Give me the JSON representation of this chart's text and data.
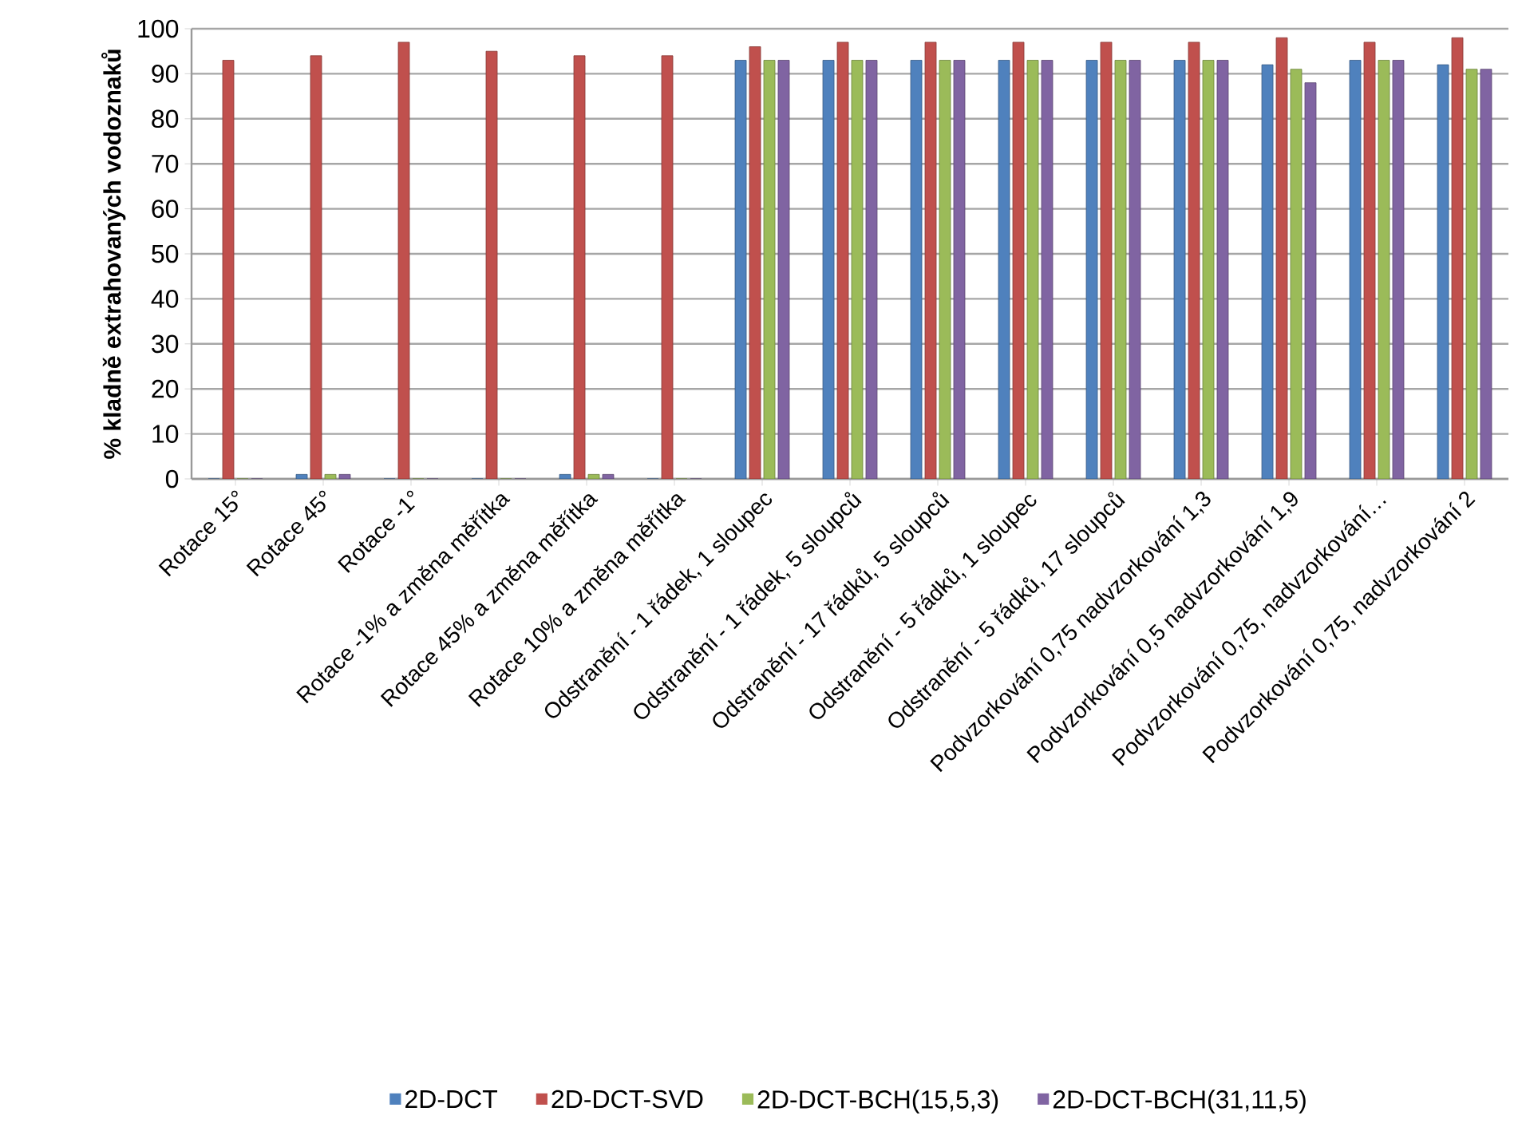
{
  "chart_data": {
    "type": "bar",
    "ylabel": "% kladně extrahovaných vodoznaků",
    "categories": [
      "Rotace 15°",
      "Rotace 45°",
      "Rotace -1°",
      "Rotace -1% a změna měřítka",
      "Rotace 45% a změna měřítka",
      "Rotace 10% a změna měřítka",
      "Odstranění - 1 řádek, 1 sloupec",
      "Odstranění - 1 řádek, 5 sloupců",
      "Odstranění - 17 řádků, 5 sloupců",
      "Odstranění - 5 řádků, 1 sloupec",
      "Odstranění - 5 řádků, 17 sloupců",
      "Podvzorkování 0,75 nadvzorkování 1,3",
      "Podvzorkování 0,5 nadvzorkování 1,9",
      "Podvzorkování 0,75, nadvzorkování…",
      "Podvzorkování 0,75, nadvzorkování 2"
    ],
    "series": [
      {
        "name": "2D-DCT",
        "color": "#4f81bd",
        "values": [
          0,
          1,
          0,
          0,
          1,
          0,
          93,
          93,
          93,
          93,
          93,
          93,
          92,
          93,
          92
        ]
      },
      {
        "name": "2D-DCT-SVD",
        "color": "#c0504d",
        "values": [
          93,
          94,
          97,
          95,
          94,
          94,
          96,
          97,
          97,
          97,
          97,
          97,
          98,
          97,
          98
        ]
      },
      {
        "name": "2D-DCT-BCH(15,5,3)",
        "color": "#9bbb59",
        "values": [
          0,
          1,
          0,
          0,
          1,
          0,
          93,
          93,
          93,
          93,
          93,
          93,
          91,
          93,
          91
        ]
      },
      {
        "name": "2D-DCT-BCH(31,11,5)",
        "color": "#8064a2",
        "values": [
          0,
          1,
          0,
          0,
          1,
          0,
          93,
          93,
          93,
          93,
          93,
          93,
          88,
          93,
          91
        ]
      }
    ],
    "ylim": [
      0,
      100
    ],
    "yticks": [
      0,
      10,
      20,
      30,
      40,
      50,
      60,
      70,
      80,
      90,
      100
    ],
    "grid": "y",
    "legend": "bottom"
  }
}
